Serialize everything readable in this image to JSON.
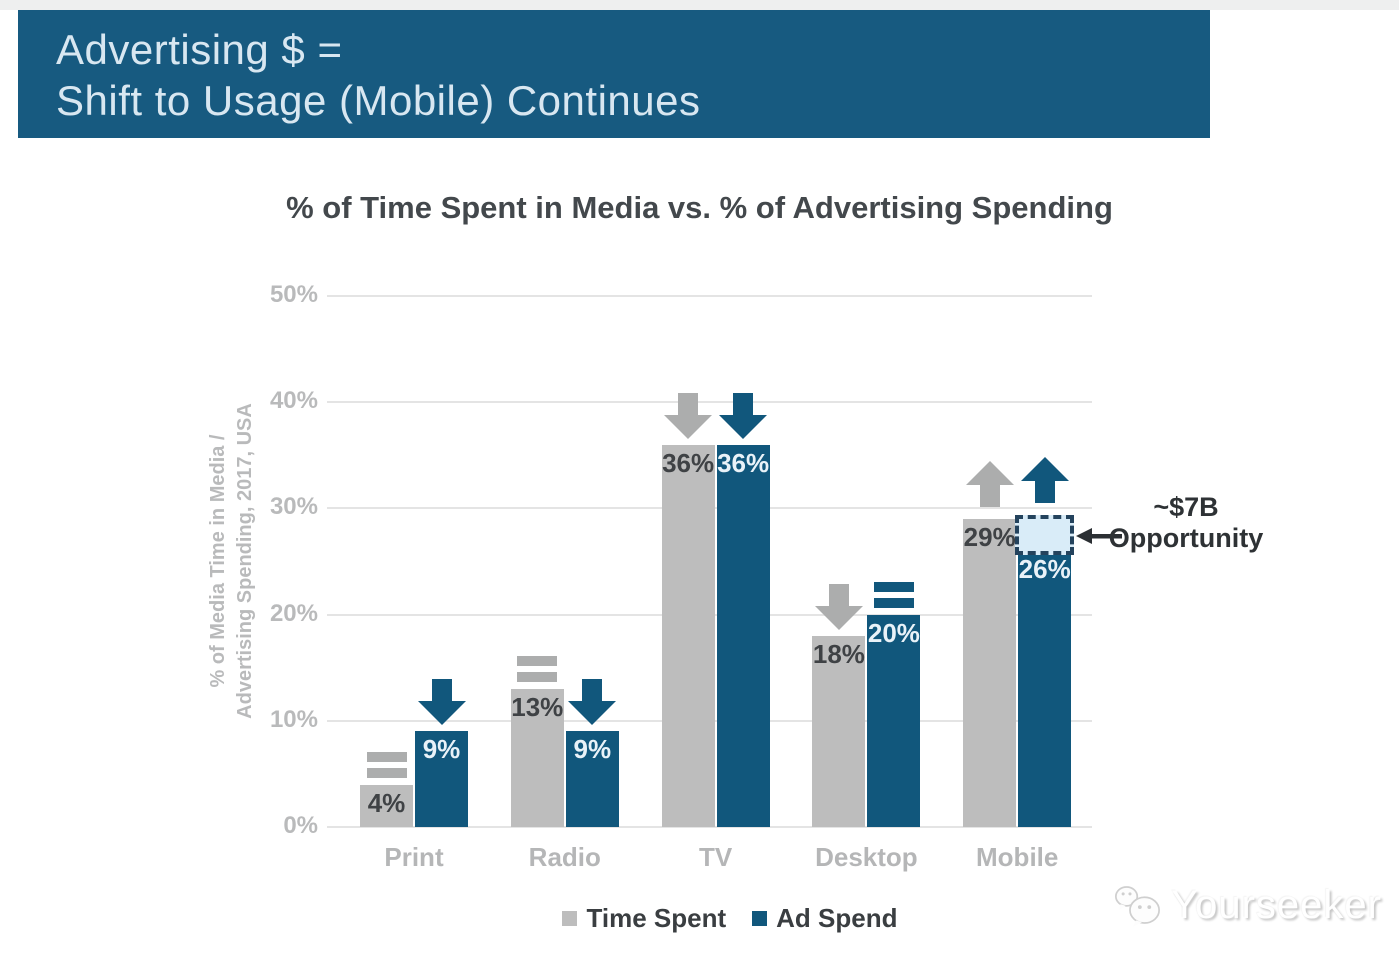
{
  "header": {
    "line1": "Advertising $ =",
    "line2": "Shift to Usage (Mobile) Continues",
    "bg_color": "#175a80",
    "text_color": "#d8e7f1"
  },
  "chart_data": {
    "type": "bar",
    "title": "% of Time Spent in Media vs. % of Advertising Spending",
    "ylabel_line1": "% of Media Time in Media /",
    "ylabel_line2": "Advertising Spending, 2017, USA",
    "ylim": [
      0,
      50
    ],
    "ytick_step": 10,
    "ytick_labels": [
      "0%",
      "10%",
      "20%",
      "30%",
      "40%",
      "50%"
    ],
    "grid": "horizontal",
    "legend_position": "bottom",
    "categories": [
      "Print",
      "Radio",
      "TV",
      "Desktop",
      "Mobile"
    ],
    "series": [
      {
        "name": "Time Spent",
        "color": "#bdbdbd",
        "arrow_color": "#acadad",
        "label_color": "#3f4245",
        "values": [
          4,
          13,
          36,
          18,
          29
        ],
        "value_labels": [
          "4%",
          "13%",
          "36%",
          "18%",
          "29%"
        ],
        "trends": [
          "flat",
          "flat",
          "down",
          "down",
          "up"
        ]
      },
      {
        "name": "Ad Spend",
        "color": "#11577c",
        "arrow_color": "#11577c",
        "label_color": "#e9f2f8",
        "values": [
          9,
          9,
          36,
          20,
          26
        ],
        "value_labels": [
          "9%",
          "9%",
          "36%",
          "20%",
          "26%"
        ],
        "trends": [
          "down",
          "down",
          "down",
          "flat",
          "up"
        ]
      }
    ],
    "annotation": {
      "category": "Mobile",
      "series": "Ad Spend",
      "gap_from": 26,
      "gap_to": 29,
      "line1": "~$7B",
      "line2": "Opportunity",
      "box_fill": "#d9ecf8",
      "box_border": "#24435d",
      "arrow_color": "#2b2f33"
    }
  },
  "watermark": {
    "text": "Yourseeker"
  }
}
